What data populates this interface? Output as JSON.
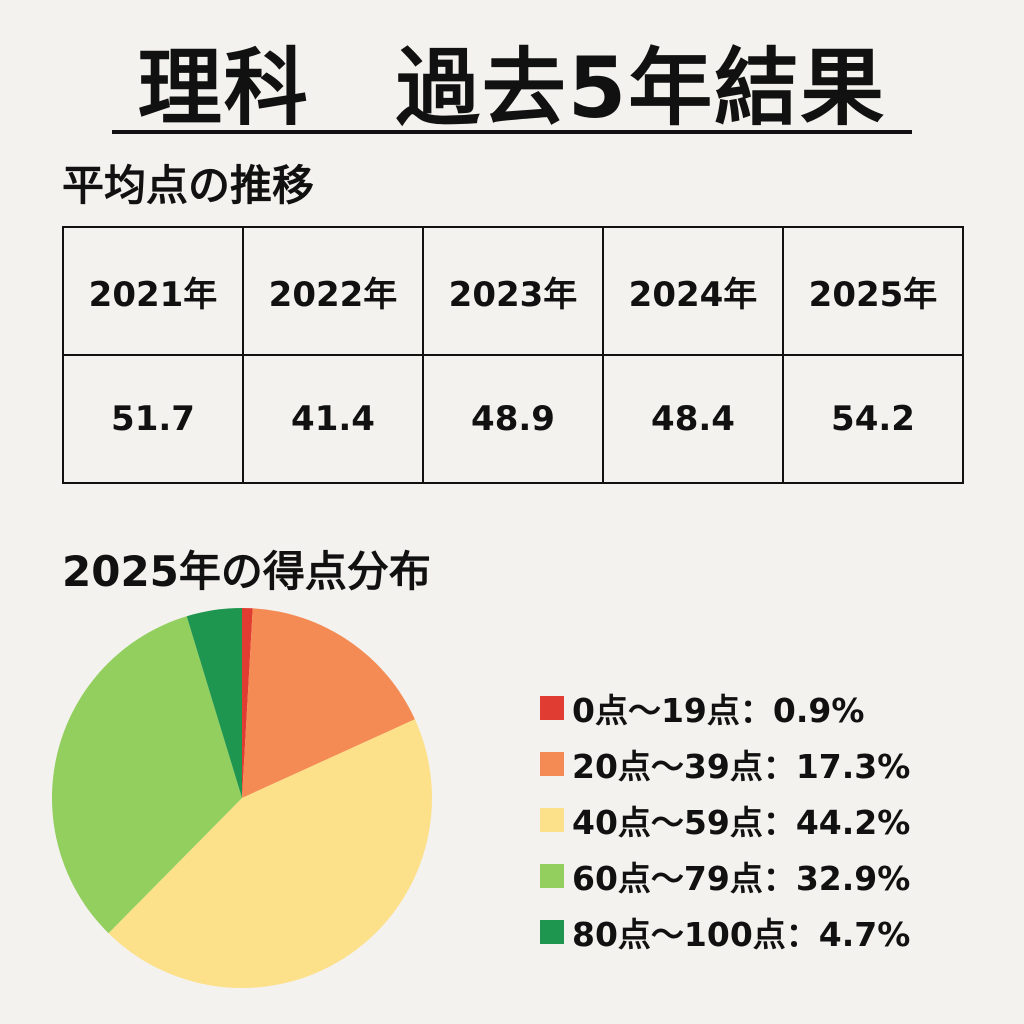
{
  "header": {
    "title": "理科　過去5年結果"
  },
  "average": {
    "heading": "平均点の推移",
    "years": [
      "2021年",
      "2022年",
      "2023年",
      "2024年",
      "2025年"
    ],
    "scores": [
      "51.7",
      "41.4",
      "48.9",
      "48.4",
      "54.2"
    ]
  },
  "distribution": {
    "heading": "2025年の得点分布",
    "legend": [
      "0点〜19点：0.9%",
      "20点〜39点：17.3%",
      "40点〜59点：44.2%",
      "60点〜79点：32.9%",
      "80点〜100点：4.7%"
    ]
  },
  "chart_data": [
    {
      "type": "table",
      "title": "平均点の推移",
      "columns": [
        "2021年",
        "2022年",
        "2023年",
        "2024年",
        "2025年"
      ],
      "rows": [
        [
          51.7,
          41.4,
          48.9,
          48.4,
          54.2
        ]
      ]
    },
    {
      "type": "pie",
      "title": "2025年の得点分布",
      "categories": [
        "0点〜19点",
        "20点〜39点",
        "40点〜59点",
        "60点〜79点",
        "80点〜100点"
      ],
      "values": [
        0.9,
        17.3,
        44.2,
        32.9,
        4.7
      ],
      "colors": [
        "#e03c31",
        "#f58b54",
        "#fde08a",
        "#92cf5e",
        "#1f9650"
      ],
      "legend": "right"
    }
  ]
}
